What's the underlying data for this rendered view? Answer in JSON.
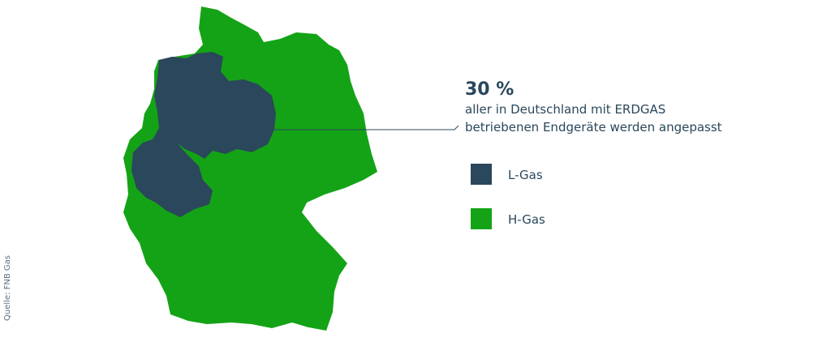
{
  "callout": {
    "headline": "30 %",
    "lines": [
      "aller in Deutschland mit ERDGAS",
      "betriebenen Endgeräte werden angepasst"
    ]
  },
  "legend": [
    {
      "label": "L-Gas",
      "color": "#2a475b"
    },
    {
      "label": "H-Gas",
      "color": "#14a316"
    }
  ],
  "source": "Quelle: FNB Gas"
}
